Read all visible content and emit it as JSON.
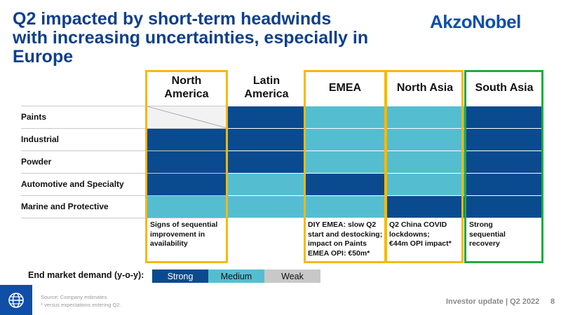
{
  "title": {
    "line1": "Q2 impacted by short-term headwinds",
    "line2": "with increasing uncertainties, especially in Europe"
  },
  "brand": {
    "logo_text": "AkzoNobel"
  },
  "colors": {
    "title": "#0F3F8C",
    "strong": "#0A4A8E",
    "medium": "#54BED0",
    "weak": "#F2F2F2",
    "frame_yellow": "#F7B90B",
    "frame_green": "#25A741"
  },
  "columns": [
    {
      "line1": "North",
      "line2": "America"
    },
    {
      "line1": "Latin",
      "line2": "America"
    },
    {
      "line1": "EMEA",
      "line2": ""
    },
    {
      "line1": "North Asia",
      "line2": ""
    },
    {
      "line1": "South Asia",
      "line2": ""
    }
  ],
  "rows": [
    "Paints",
    "Industrial",
    "Powder",
    "Automotive and Specialty",
    "Marine and Protective"
  ],
  "demand_grid": [
    [
      "Weak",
      "Strong",
      "Medium",
      "Medium",
      "Strong"
    ],
    [
      "Strong",
      "Strong",
      "Medium",
      "Medium",
      "Strong"
    ],
    [
      "Strong",
      "Strong",
      "Medium",
      "Medium",
      "Strong"
    ],
    [
      "Strong",
      "Medium",
      "Strong",
      "Medium",
      "Strong"
    ],
    [
      "Medium",
      "Medium",
      "Medium",
      "Strong",
      "Strong"
    ]
  ],
  "notes": {
    "north_america": [
      "Signs of sequential",
      "improvement in",
      "availability"
    ],
    "emea": [
      "DIY EMEA: slow Q2",
      "start and destocking;",
      "impact on Paints",
      "EMEA OPI: €50m*"
    ],
    "north_asia": [
      "Q2 China COVID",
      "lockdowns;",
      "€44m OPI impact*"
    ],
    "south_asia": [
      "Strong",
      "sequential",
      "recovery"
    ]
  },
  "legend": {
    "title": "End market demand (y-o-y):",
    "strong": "Strong",
    "medium": "Medium",
    "weak": "Weak"
  },
  "footer": {
    "source": "Source: Company estimates.",
    "footnote": "* versus expectations entering Q2.",
    "report": "Investor update | Q2 2022",
    "page": "8",
    "icon": "globe-icon"
  }
}
